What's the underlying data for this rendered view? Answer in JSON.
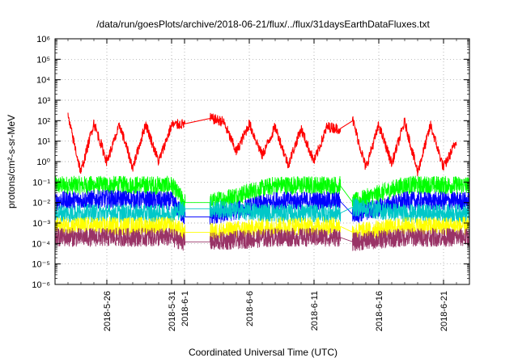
{
  "chart_data": {
    "type": "line",
    "title": "/data/run/goesPlots/archive/2018-06-21/flux/../flux/31daysEarthDataFluxes.txt",
    "xlabel": "Coordinated Universal Time (UTC)",
    "ylabel": "protons/cm²-s-sr-MeV",
    "y_scale": "log",
    "ylim_exponent": [
      -6,
      6
    ],
    "y_tick_exponents": [
      -6,
      -5,
      -4,
      -3,
      -2,
      -1,
      0,
      1,
      2,
      3,
      4,
      5,
      6
    ],
    "x_ticks": [
      "2018-5-26",
      "2018-5-31",
      "2018-6-1",
      "2018-6-6",
      "2018-6-11",
      "2018-6-16",
      "2018-6-21"
    ],
    "xlim": [
      "2018-05-22",
      "2018-06-23"
    ],
    "data_gaps": [
      {
        "start": "2018-06-01",
        "end": "2018-06-03"
      },
      {
        "start": "2018-06-13",
        "end": "2018-06-14"
      }
    ],
    "grid": true,
    "legend": "none",
    "series": [
      {
        "color": "#ff0000",
        "x": [
          "2018-05-23",
          "2018-05-24",
          "2018-05-25",
          "2018-05-26",
          "2018-05-27",
          "2018-05-28",
          "2018-05-29",
          "2018-05-30",
          "2018-05-31",
          "2018-06-01",
          "2018-06-03",
          "2018-06-04",
          "2018-06-05",
          "2018-06-06",
          "2018-06-07",
          "2018-06-08",
          "2018-06-09",
          "2018-06-10",
          "2018-06-11",
          "2018-06-12",
          "2018-06-13",
          "2018-06-14",
          "2018-06-15",
          "2018-06-16",
          "2018-06-17",
          "2018-06-18",
          "2018-06-19",
          "2018-06-20",
          "2018-06-21",
          "2018-06-22"
        ],
        "y": [
          150,
          0.3,
          80,
          1,
          60,
          0.5,
          70,
          1,
          60,
          70,
          130,
          90,
          3,
          70,
          2,
          50,
          0.7,
          40,
          1,
          50,
          40,
          100,
          0.5,
          60,
          0.8,
          90,
          0.3,
          60,
          0.5,
          10
        ]
      },
      {
        "color": "#00ff00",
        "x": [
          "2018-05-22",
          "2018-05-26",
          "2018-05-31",
          "2018-06-01",
          "2018-06-03",
          "2018-06-08",
          "2018-06-13",
          "2018-06-14",
          "2018-06-18",
          "2018-06-23"
        ],
        "y": [
          0.07,
          0.07,
          0.07,
          0.01,
          0.01,
          0.07,
          0.07,
          0.01,
          0.07,
          0.07
        ]
      },
      {
        "color": "#0000ff",
        "x": [
          "2018-05-22",
          "2018-05-26",
          "2018-05-31",
          "2018-06-01",
          "2018-06-03",
          "2018-06-08",
          "2018-06-13",
          "2018-06-14",
          "2018-06-18",
          "2018-06-23"
        ],
        "y": [
          0.012,
          0.015,
          0.012,
          0.002,
          0.002,
          0.012,
          0.012,
          0.0025,
          0.012,
          0.012
        ]
      },
      {
        "color": "#00c8c8",
        "x": [
          "2018-05-22",
          "2018-05-26",
          "2018-05-31",
          "2018-06-01",
          "2018-06-03",
          "2018-06-08",
          "2018-06-13",
          "2018-06-14",
          "2018-06-18",
          "2018-06-23"
        ],
        "y": [
          0.003,
          0.003,
          0.003,
          0.005,
          0.005,
          0.003,
          0.003,
          0.006,
          0.003,
          0.003
        ]
      },
      {
        "color": "#ffff00",
        "x": [
          "2018-05-22",
          "2018-05-26",
          "2018-05-31",
          "2018-06-01",
          "2018-06-03",
          "2018-06-08",
          "2018-06-13",
          "2018-06-14",
          "2018-06-18",
          "2018-06-23"
        ],
        "y": [
          0.0007,
          0.0007,
          0.0007,
          0.00035,
          0.00035,
          0.0007,
          0.0007,
          0.00035,
          0.0007,
          0.0007
        ]
      },
      {
        "color": "#993366",
        "x": [
          "2018-05-22",
          "2018-05-26",
          "2018-05-31",
          "2018-06-01",
          "2018-06-03",
          "2018-06-08",
          "2018-06-13",
          "2018-06-14",
          "2018-06-18",
          "2018-06-23"
        ],
        "y": [
          0.0002,
          0.0002,
          0.0002,
          0.00012,
          0.00012,
          0.0002,
          0.0002,
          0.00012,
          0.0002,
          0.0002
        ]
      }
    ]
  }
}
